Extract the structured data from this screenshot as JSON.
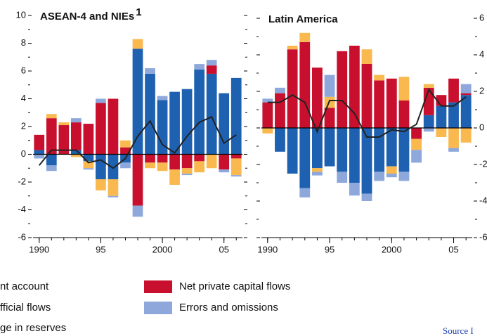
{
  "chart_data": [
    {
      "type": "bar",
      "title": "ASEAN-4 and NIEs",
      "title_sup": "1",
      "x": [
        1990,
        1991,
        1992,
        1993,
        1994,
        1995,
        1996,
        1997,
        1998,
        1999,
        2000,
        2001,
        2002,
        2003,
        2004,
        2005,
        2006
      ],
      "xlim": [
        1989.5,
        2006.5
      ],
      "xticks": [
        1990,
        {
          "value": 1995,
          "label": "95"
        },
        2000,
        {
          "value": 2005,
          "label": "05"
        }
      ],
      "ylim": [
        -6,
        10
      ],
      "yticks": [
        -6,
        -4,
        -2,
        0,
        2,
        4,
        6,
        8,
        10
      ],
      "yaxis_side": "left",
      "series": [
        {
          "name": "nt account",
          "type": "line",
          "color": "#222222",
          "values": [
            -0.8,
            0.3,
            0.3,
            0.3,
            -0.6,
            -0.4,
            -1.0,
            -0.3,
            1.3,
            2.4,
            0.7,
            0.1,
            1.3,
            2.3,
            2.7,
            0.8,
            1.4
          ]
        },
        {
          "name": "fficial flows",
          "color": "#f9b94f",
          "values": [
            0,
            0.3,
            0.2,
            -0.2,
            -0.5,
            -0.8,
            -1.2,
            0.5,
            0.7,
            -0.4,
            -0.6,
            -1.1,
            -0.4,
            -0.8,
            -1.0,
            0,
            -1.2
          ]
        },
        {
          "name": "ge in reserves",
          "color": "#1f61b1",
          "values": [
            0.3,
            -0.8,
            0,
            0.3,
            -0.5,
            -1.8,
            -1.8,
            -0.6,
            7.6,
            5.8,
            3.9,
            4.5,
            4.7,
            6.1,
            5.8,
            4.4,
            5.5
          ]
        },
        {
          "name": "Net private capital flows",
          "color": "#c8102e",
          "values": [
            1.1,
            2.6,
            2.1,
            2.0,
            2.2,
            3.7,
            4.0,
            0.5,
            -3.7,
            -0.6,
            -0.6,
            -1.1,
            -1.0,
            -0.5,
            0.6,
            -1.1,
            -0.3
          ]
        },
        {
          "name": "Errors and omissions",
          "color": "#8ea8dc",
          "values": [
            -0.3,
            -0.4,
            0,
            0.3,
            -0.1,
            0.3,
            -0.1,
            -0.4,
            -0.8,
            0.4,
            0.3,
            0,
            -0.1,
            0.4,
            0.4,
            -0.2,
            -0.1
          ]
        }
      ]
    },
    {
      "type": "bar",
      "title": "Latin America",
      "x": [
        1990,
        1991,
        1992,
        1993,
        1994,
        1995,
        1996,
        1997,
        1998,
        1999,
        2000,
        2001,
        2002,
        2003,
        2004,
        2005,
        2006
      ],
      "xlim": [
        1989.5,
        2006.5
      ],
      "xticks": [
        1990,
        {
          "value": 1995,
          "label": "95"
        },
        2000,
        {
          "value": 2005,
          "label": "05"
        }
      ],
      "ylim": [
        -6,
        6
      ],
      "yticks": [
        -6,
        -4,
        -2,
        0,
        2,
        4,
        6
      ],
      "yaxis_side": "right",
      "series": [
        {
          "name": "nt account",
          "type": "line",
          "color": "#222222",
          "values": [
            1.4,
            1.4,
            1.8,
            1.4,
            -0.2,
            1.5,
            1.5,
            0.8,
            -0.5,
            -0.5,
            -0.1,
            -0.2,
            0.2,
            2.1,
            1.2,
            1.2,
            1.7
          ]
        },
        {
          "name": "fficial flows",
          "color": "#f9b94f",
          "values": [
            -0.3,
            0,
            0.2,
            0.5,
            -0.2,
            0.6,
            0,
            0,
            0.8,
            0.3,
            -0.4,
            1.3,
            -0.6,
            0.2,
            -0.5,
            -1.1,
            -0.8
          ]
        },
        {
          "name": "ge in reserves",
          "color": "#1f61b1",
          "values": [
            0,
            -1.3,
            -2.5,
            -3.3,
            -2.2,
            -2.1,
            -2.4,
            -3.0,
            -3.6,
            -2.4,
            -2.1,
            -2.4,
            0,
            0.7,
            1.2,
            1.4,
            1.8
          ]
        },
        {
          "name": "Net private capital flows",
          "color": "#c8102e",
          "values": [
            1.4,
            1.9,
            4.3,
            4.7,
            3.3,
            1.1,
            4.2,
            4.5,
            3.5,
            2.6,
            2.7,
            1.5,
            -0.6,
            1.5,
            0.6,
            1.3,
            0.1
          ]
        },
        {
          "name": "Errors and omissions",
          "color": "#8ea8dc",
          "values": [
            0.2,
            0.3,
            0,
            -0.5,
            -0.2,
            1.2,
            -0.6,
            -0.7,
            -0.4,
            -0.5,
            -0.2,
            -0.5,
            -0.7,
            -0.2,
            0,
            -0.2,
            0.5
          ]
        }
      ]
    }
  ],
  "source": "Source I"
}
